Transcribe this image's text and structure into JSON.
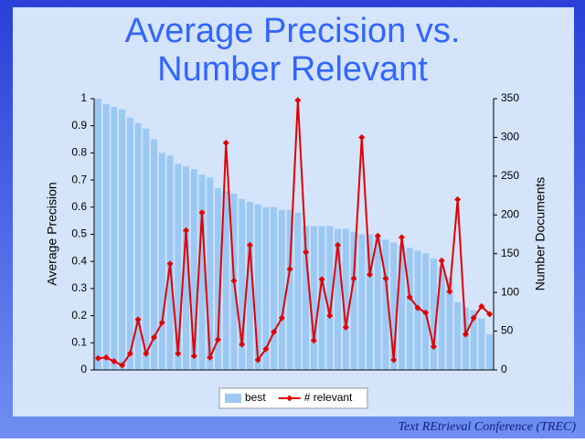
{
  "chart_data": {
    "type": "bar",
    "title": [
      "Average Precision vs.",
      "Number Relevant"
    ],
    "y_label": "Average Precision",
    "y2_label": "Number Documents",
    "ylim": [
      0,
      1
    ],
    "yticks": [
      0,
      0.1,
      0.2,
      0.3,
      0.4,
      0.5,
      0.6,
      0.7,
      0.8,
      0.9,
      1
    ],
    "y2lim": [
      0,
      350
    ],
    "y2ticks": [
      0,
      50,
      100,
      150,
      200,
      250,
      300,
      350
    ],
    "legend": "bottom",
    "series": [
      {
        "name": "best",
        "type": "bar",
        "color": "#9cc8f4",
        "values": [
          1.0,
          0.98,
          0.97,
          0.96,
          0.93,
          0.91,
          0.89,
          0.85,
          0.8,
          0.79,
          0.76,
          0.75,
          0.74,
          0.72,
          0.71,
          0.67,
          0.66,
          0.65,
          0.63,
          0.62,
          0.61,
          0.6,
          0.6,
          0.59,
          0.59,
          0.58,
          0.53,
          0.53,
          0.53,
          0.53,
          0.52,
          0.52,
          0.51,
          0.5,
          0.5,
          0.49,
          0.48,
          0.47,
          0.46,
          0.45,
          0.44,
          0.43,
          0.41,
          0.38,
          0.34,
          0.25,
          0.23,
          0.22,
          0.19,
          0.13
        ]
      },
      {
        "name": "# relevant",
        "type": "line",
        "axis": "y2",
        "color": "#e00000",
        "values": [
          15,
          16,
          11,
          6,
          21,
          65,
          21,
          42,
          61,
          137,
          21,
          180,
          18,
          203,
          16,
          39,
          293,
          115,
          33,
          161,
          13,
          27,
          49,
          67,
          130,
          348,
          152,
          38,
          117,
          70,
          161,
          55,
          118,
          300,
          123,
          173,
          118,
          13,
          171,
          94,
          80,
          74,
          30,
          141,
          101,
          220,
          46,
          67,
          82,
          72
        ]
      }
    ]
  },
  "footer": "Text REtrieval Conference (TREC)"
}
